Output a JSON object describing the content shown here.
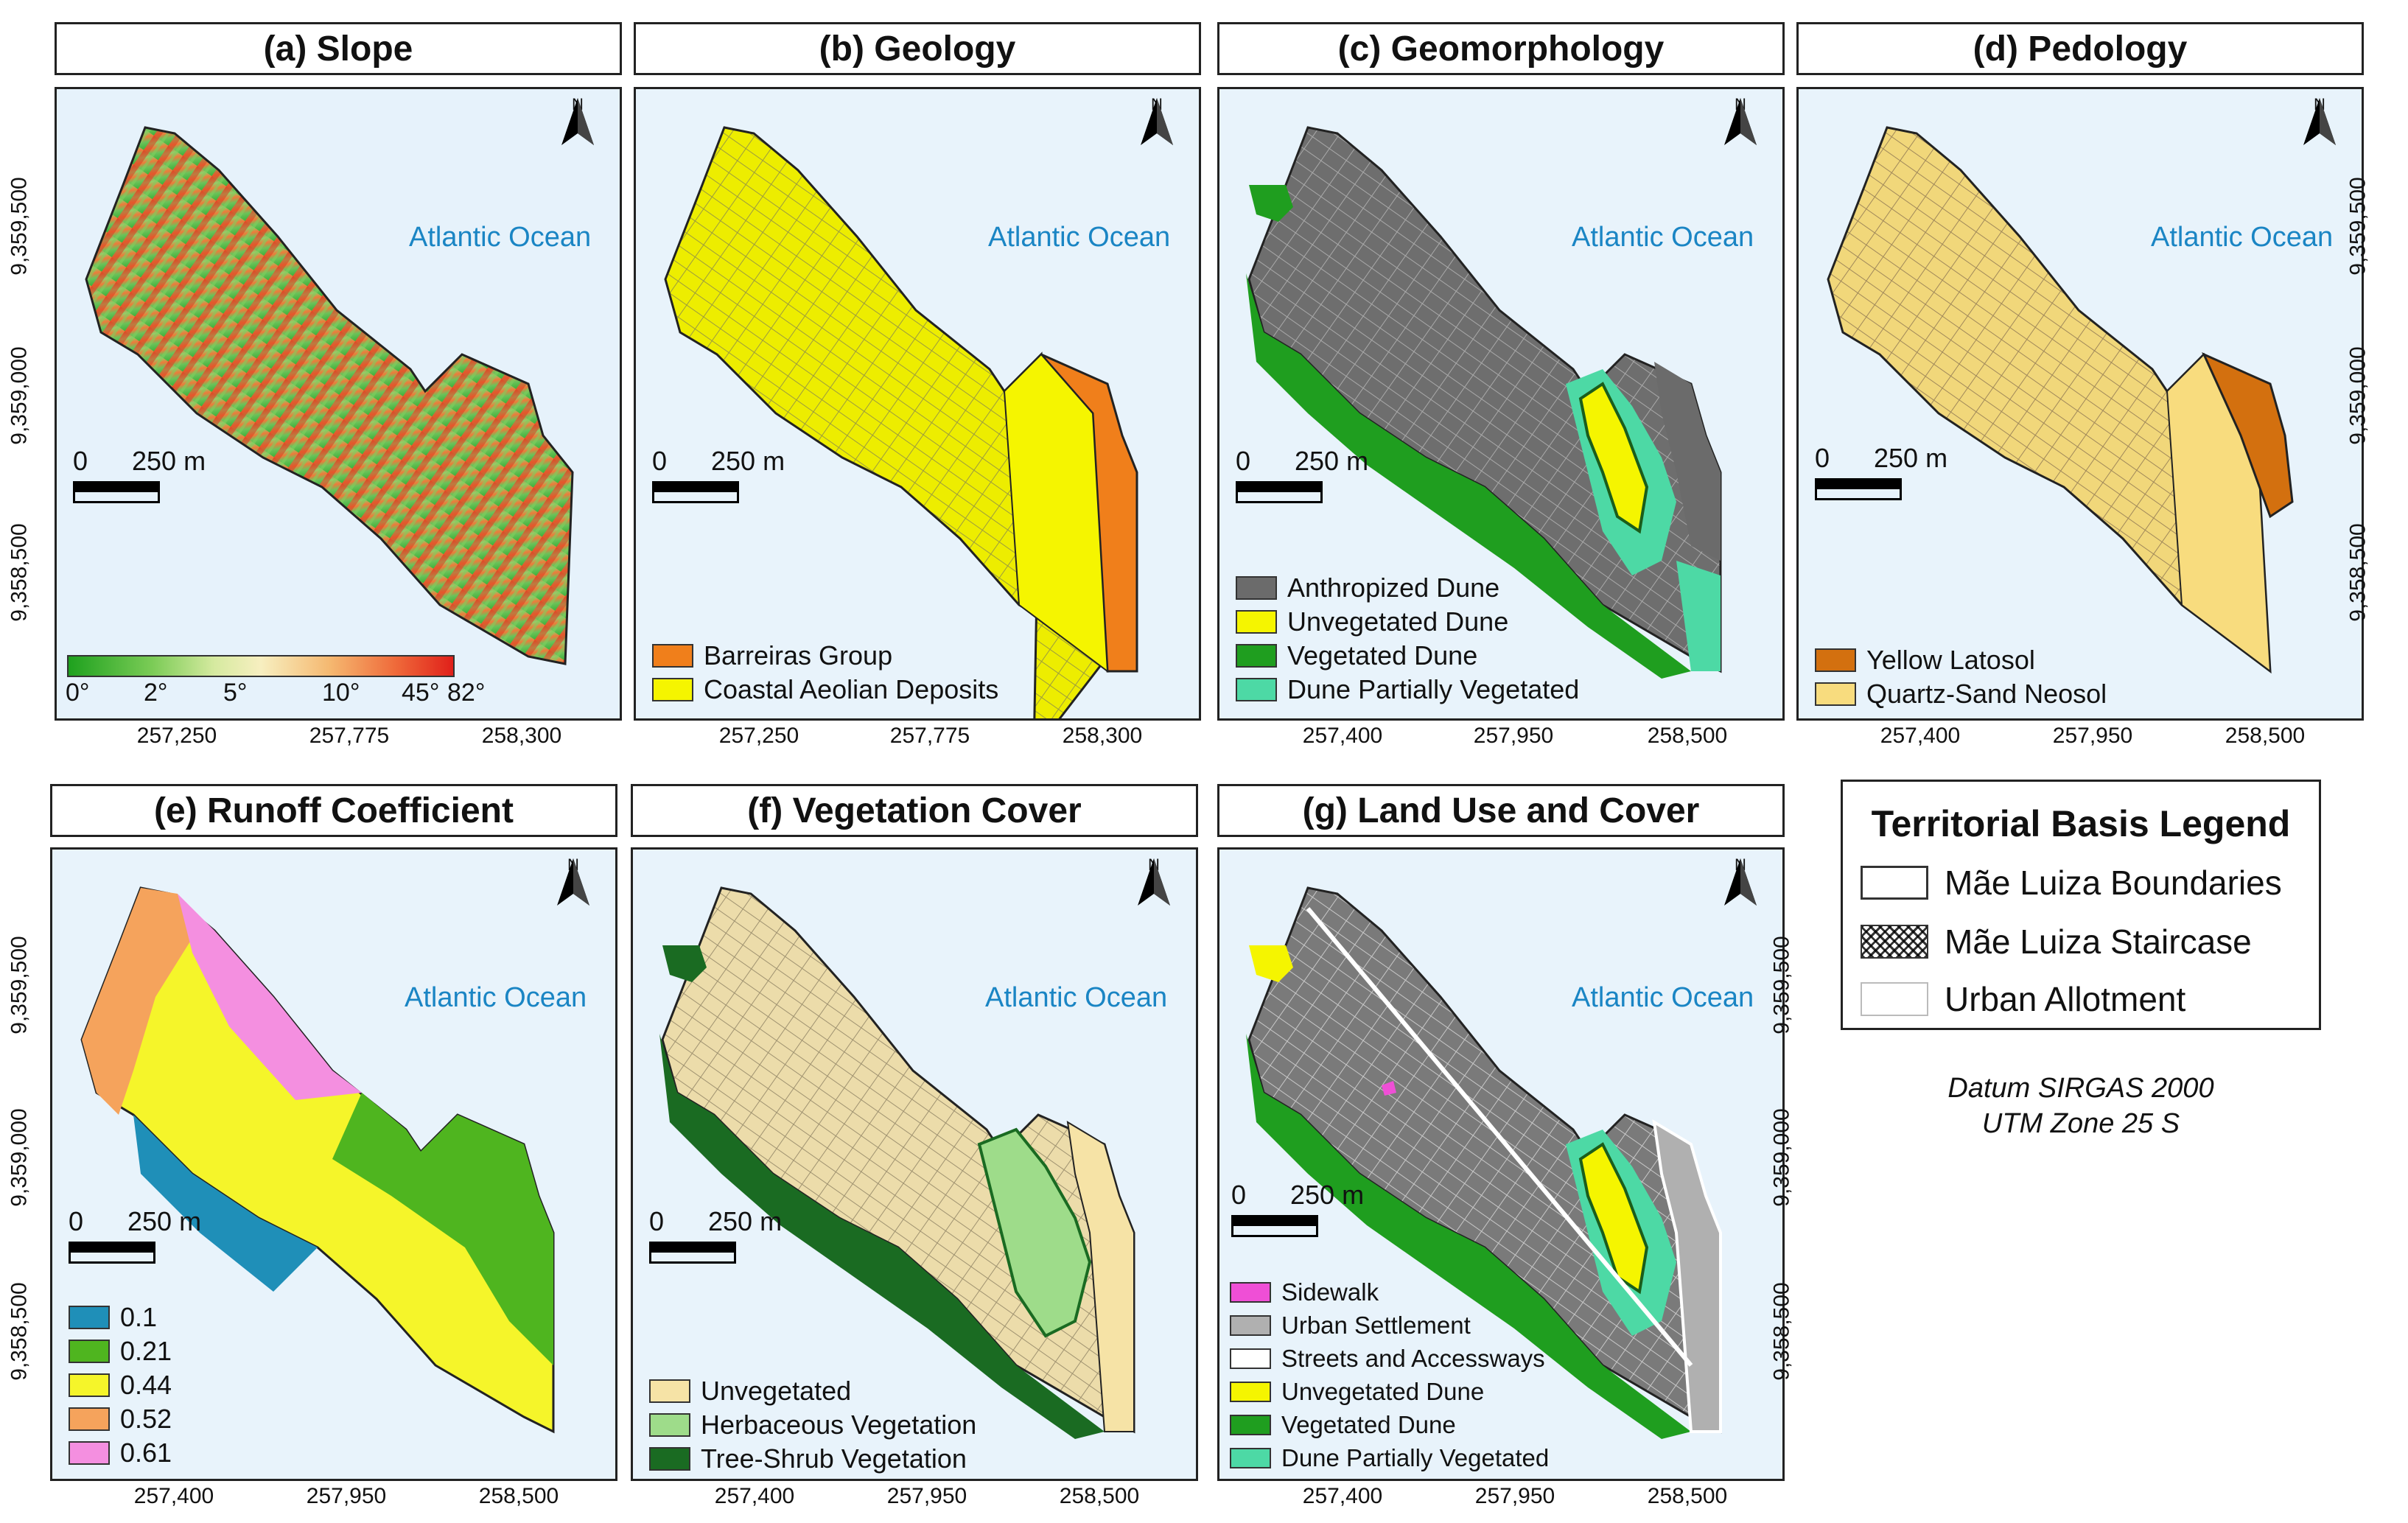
{
  "panels": [
    {
      "key": "a",
      "title": "(a) Slope",
      "ocean": "Atlantic Ocean",
      "north": "N",
      "scale_zero": "0",
      "scale_dist": "250 m",
      "xticks": [
        "257,250",
        "257,775",
        "258,300"
      ],
      "yticks": [
        "9,359,500",
        "9,359,000",
        "9,358,500"
      ],
      "ytick_side": "left"
    },
    {
      "key": "b",
      "title": "(b) Geology",
      "ocean": "Atlantic Ocean",
      "north": "N",
      "scale_zero": "0",
      "scale_dist": "250 m",
      "xticks": [
        "257,250",
        "257,775",
        "258,300"
      ]
    },
    {
      "key": "c",
      "title": "(c) Geomorphology",
      "ocean": "Atlantic Ocean",
      "north": "N",
      "scale_zero": "0",
      "scale_dist": "250 m",
      "xticks": [
        "257,400",
        "257,950",
        "258,500"
      ]
    },
    {
      "key": "d",
      "title": "(d) Pedology",
      "ocean": "Atlantic Ocean",
      "north": "N",
      "scale_zero": "0",
      "scale_dist": "250 m",
      "xticks": [
        "257,400",
        "257,950",
        "258,500"
      ],
      "yticks": [
        "9,359,500",
        "9,359,000",
        "9,358,500"
      ],
      "ytick_side": "right"
    },
    {
      "key": "e",
      "title": "(e) Runoff Coefficient",
      "ocean": "Atlantic Ocean",
      "north": "N",
      "scale_zero": "0",
      "scale_dist": "250 m",
      "xticks": [
        "257,400",
        "257,950",
        "258,500"
      ],
      "yticks": [
        "9,359,500",
        "9,359,000",
        "9,358,500"
      ],
      "ytick_side": "left"
    },
    {
      "key": "f",
      "title": "(f) Vegetation Cover",
      "ocean": "Atlantic Ocean",
      "north": "N",
      "scale_zero": "0",
      "scale_dist": "250 m",
      "xticks": [
        "257,400",
        "257,950",
        "258,500"
      ]
    },
    {
      "key": "g",
      "title": "(g) Land Use and Cover",
      "ocean": "Atlantic Ocean",
      "north": "N",
      "scale_zero": "0",
      "scale_dist": "250 m",
      "xticks": [
        "257,400",
        "257,950",
        "258,500"
      ],
      "yticks": [
        "9,359,500",
        "9,359,000",
        "9,358,500"
      ],
      "ytick_side": "left"
    }
  ],
  "slope_colorbar": {
    "labels": [
      "0°",
      "2°",
      "5°",
      "10°",
      "45°",
      "82°"
    ]
  },
  "legends": {
    "geology": [
      {
        "label": "Barreiras Group",
        "color": "#f07f1b"
      },
      {
        "label": "Coastal Aeolian Deposits",
        "color": "#f5f500"
      }
    ],
    "geomorphology": [
      {
        "label": "Anthropized Dune",
        "color": "#6b6b6b"
      },
      {
        "label": "Unvegetated Dune",
        "color": "#f5f500"
      },
      {
        "label": "Vegetated Dune",
        "color": "#1f9e1f"
      },
      {
        "label": "Dune Partially Vegetated",
        "color": "#4dd9a5"
      }
    ],
    "pedology": [
      {
        "label": "Yellow Latosol",
        "color": "#d3700f"
      },
      {
        "label": "Quartz-Sand Neosol",
        "color": "#f8dc7e"
      }
    ],
    "runoff": [
      {
        "label": "0.1",
        "color": "#1f8fb8"
      },
      {
        "label": "0.21",
        "color": "#4fb51f"
      },
      {
        "label": "0.44",
        "color": "#f5f52a"
      },
      {
        "label": "0.52",
        "color": "#f5a35c"
      },
      {
        "label": "0.61",
        "color": "#f48fe0"
      }
    ],
    "vegetation": [
      {
        "label": "Unvegetated",
        "color": "#f6e3a6"
      },
      {
        "label": "Herbaceous Vegetation",
        "color": "#9edc8a"
      },
      {
        "label": "Tree-Shrub Vegetation",
        "color": "#1a6b22"
      }
    ],
    "landuse": [
      {
        "label": "Sidewalk",
        "color": "#ef4fd6"
      },
      {
        "label": "Urban Settlement",
        "color": "#b0b0b0"
      },
      {
        "label": "Streets and Accessways",
        "color": "#ffffff"
      },
      {
        "label": "Unvegetated Dune",
        "color": "#f5f500"
      },
      {
        "label": "Vegetated Dune",
        "color": "#1f9e1f"
      },
      {
        "label": "Dune Partially Vegetated",
        "color": "#4dd9a5"
      }
    ]
  },
  "territorial": {
    "title": "Territorial Basis Legend",
    "items": [
      "Mãe Luiza Boundaries",
      "Mãe Luiza Staircase",
      "Urban Allotment"
    ],
    "datum_line1": "Datum SIRGAS 2000",
    "datum_line2": "UTM Zone 25 S"
  }
}
